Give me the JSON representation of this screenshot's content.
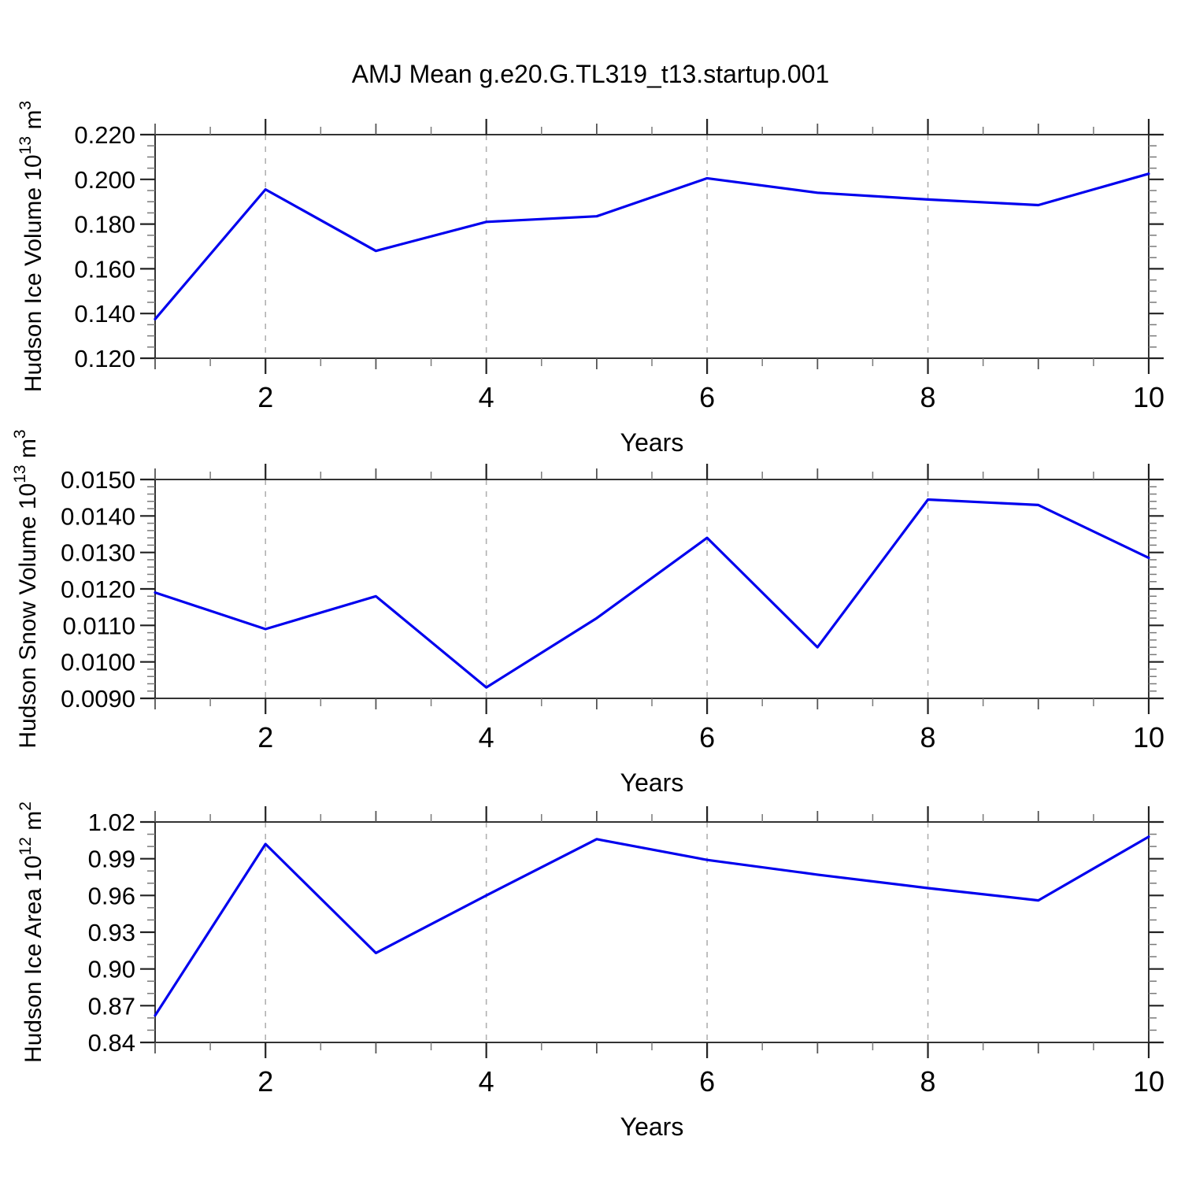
{
  "title": "AMJ Mean g.e20.G.TL319_t13.startup.001",
  "xlabel": "Years",
  "x_range": [
    1,
    10
  ],
  "x_tick_values": [
    2,
    4,
    6,
    8,
    10
  ],
  "x_tick_labels": [
    "2",
    "4",
    "6",
    "8",
    "10"
  ],
  "x_minor_step": 0.5,
  "grid_years": [
    2,
    4,
    6,
    8
  ],
  "colors": {
    "line": "#0000ee",
    "axis": "#333333",
    "major_tick": "#222222",
    "mid_tick": "#555555",
    "minor_tick": "#7a7a7a",
    "grid": "#b0b0b0",
    "text": "#000000"
  },
  "chart_data": [
    {
      "type": "line",
      "name": "hudson-ice-volume",
      "ylabel": "Hudson Ice Volume 10^13 m^3",
      "ylabel_rich": [
        {
          "t": "Hudson Ice Volume 10"
        },
        {
          "t": "13",
          "sup": true
        },
        {
          "t": " m"
        },
        {
          "t": "3",
          "sup": true
        }
      ],
      "xlabel": "Years",
      "x": [
        1,
        2,
        3,
        4,
        5,
        6,
        7,
        8,
        9,
        10
      ],
      "y": [
        0.1375,
        0.1955,
        0.168,
        0.181,
        0.1835,
        0.2005,
        0.194,
        0.191,
        0.1885,
        0.2025
      ],
      "ylim": [
        0.12,
        0.22
      ],
      "ytick_values": [
        0.22,
        0.2,
        0.18,
        0.16,
        0.14,
        0.12
      ],
      "ytick_labels": [
        "0.220",
        "0.200",
        "0.180",
        "0.160",
        "0.140",
        "0.120"
      ],
      "y_minor_step": 0.005,
      "grid": "dashed-vertical-at-even-years",
      "legend": "none"
    },
    {
      "type": "line",
      "name": "hudson-snow-volume",
      "ylabel": "Hudson Snow Volume 10^13 m^3",
      "ylabel_rich": [
        {
          "t": "Hudson Snow Volume 10"
        },
        {
          "t": "13",
          "sup": true
        },
        {
          "t": " m"
        },
        {
          "t": "3",
          "sup": true
        }
      ],
      "xlabel": "Years",
      "x": [
        1,
        2,
        3,
        4,
        5,
        6,
        7,
        8,
        9,
        10
      ],
      "y": [
        0.0119,
        0.0109,
        0.0118,
        0.0093,
        0.0112,
        0.0134,
        0.0104,
        0.01445,
        0.0143,
        0.01285
      ],
      "ylim": [
        0.009,
        0.015
      ],
      "ytick_values": [
        0.015,
        0.014,
        0.013,
        0.012,
        0.011,
        0.01,
        0.009
      ],
      "ytick_labels": [
        "0.0150",
        "0.0140",
        "0.0130",
        "0.0120",
        "0.0110",
        "0.0100",
        "0.0090"
      ],
      "y_minor_step": 0.0002,
      "grid": "dashed-vertical-at-even-years",
      "legend": "none"
    },
    {
      "type": "line",
      "name": "hudson-ice-area",
      "ylabel": "Hudson Ice Area 10^12 m^2",
      "ylabel_rich": [
        {
          "t": "Hudson Ice Area 10"
        },
        {
          "t": "12",
          "sup": true
        },
        {
          "t": " m"
        },
        {
          "t": "2",
          "sup": true
        }
      ],
      "xlabel": "Years",
      "x": [
        1,
        2,
        3,
        4,
        5,
        6,
        7,
        8,
        9,
        10
      ],
      "y": [
        0.862,
        1.002,
        0.913,
        0.96,
        1.006,
        0.989,
        0.977,
        0.966,
        0.956,
        1.008
      ],
      "ylim": [
        0.84,
        1.02
      ],
      "ytick_values": [
        1.02,
        0.99,
        0.96,
        0.93,
        0.9,
        0.87,
        0.84
      ],
      "ytick_labels": [
        "1.02",
        "0.99",
        "0.96",
        "0.93",
        "0.90",
        "0.87",
        "0.84"
      ],
      "y_minor_step": 0.01,
      "grid": "dashed-vertical-at-even-years",
      "legend": "none"
    }
  ]
}
